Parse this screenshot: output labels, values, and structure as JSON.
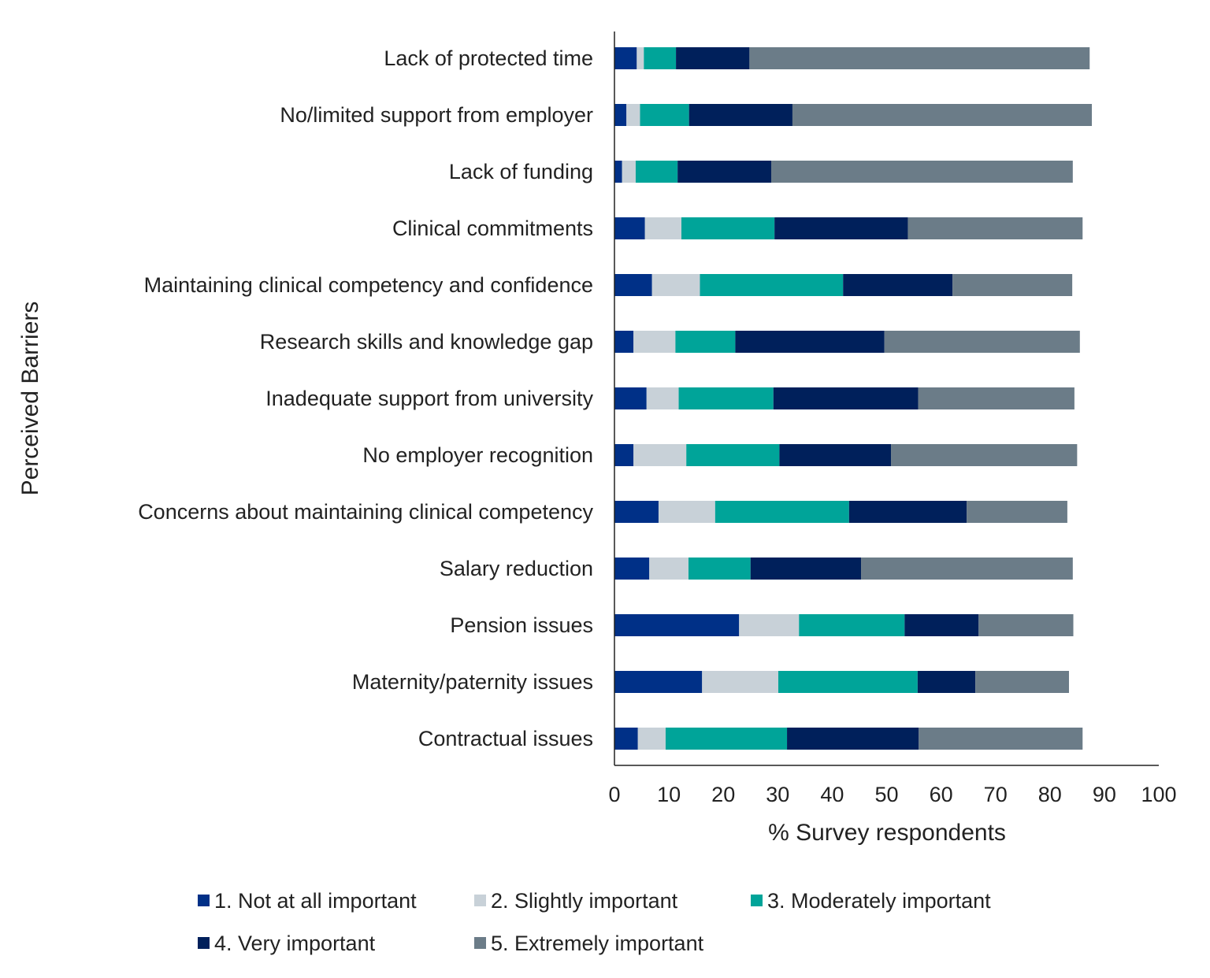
{
  "chart_data": {
    "type": "bar",
    "orientation": "horizontal",
    "stacked": true,
    "xlabel": "% Survey respondents",
    "ylabel": "Perceived Barriers",
    "xlim": [
      0,
      100
    ],
    "xticks": [
      0,
      10,
      20,
      30,
      40,
      50,
      60,
      70,
      80,
      90,
      100
    ],
    "grid": false,
    "legend_placement": "bottom",
    "categories": [
      "Lack of protected time",
      "No/limited support from employer",
      "Lack of funding",
      "Clinical commitments",
      "Maintaining clinical competency and confidence",
      "Research skills and knowledge gap",
      "Inadequate support from university",
      "No employer recognition",
      "Concerns about maintaining clinical competency",
      "Salary reduction",
      "Pension issues",
      "Maternity/paternity issues",
      "Contractual issues"
    ],
    "series": [
      {
        "name": "1. Not at all important",
        "color": "#003087",
        "values": [
          4.1,
          2.2,
          1.4,
          5.6,
          6.9,
          3.5,
          5.9,
          3.5,
          8.1,
          6.4,
          22.9,
          16.1,
          4.3
        ]
      },
      {
        "name": "2. Slightly important",
        "color": "#c8d1d8",
        "values": [
          1.3,
          2.5,
          2.5,
          6.7,
          8.8,
          7.7,
          5.9,
          9.7,
          10.4,
          7.2,
          11.0,
          14.0,
          5.1
        ]
      },
      {
        "name": "3. Moderately important",
        "color": "#00a499",
        "values": [
          5.9,
          9.0,
          7.7,
          17.1,
          26.3,
          11.0,
          17.4,
          17.1,
          24.6,
          11.4,
          19.4,
          25.6,
          22.3
        ]
      },
      {
        "name": "4. Very important",
        "color": "#00205b",
        "values": [
          13.5,
          19.0,
          17.2,
          24.5,
          20.1,
          27.4,
          26.6,
          20.5,
          21.6,
          20.3,
          13.6,
          10.6,
          24.2
        ]
      },
      {
        "name": "5. Extremely important",
        "color": "#6b7c88",
        "values": [
          62.5,
          55.0,
          55.4,
          32.1,
          22.0,
          35.9,
          28.7,
          34.2,
          18.5,
          38.9,
          17.4,
          17.2,
          30.1
        ]
      }
    ]
  }
}
